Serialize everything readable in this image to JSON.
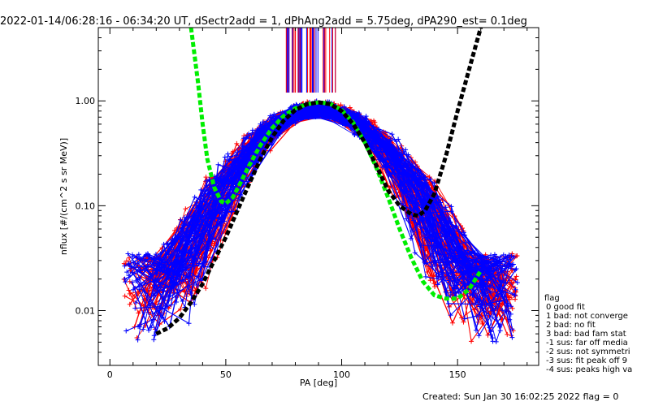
{
  "chart_data": {
    "type": "line",
    "title": "2022-01-14/06:28:16 - 06:34:20 UT, dSectr2add = 1, dPhAng2add = 5.75deg, dPA290_est=    0.1deg",
    "xlabel": "PA [deg]",
    "ylabel": "nflux [#/(cm^2 s sr MeV)]",
    "x_scale": "linear",
    "y_scale": "log",
    "xlim": [
      -5,
      185
    ],
    "ylim": [
      0.003,
      5.0
    ],
    "x_ticks": [
      0,
      50,
      100,
      150
    ],
    "x_tick_labels": [
      "0",
      "50",
      "100",
      "150"
    ],
    "y_ticks": [
      0.01,
      0.1,
      1.0
    ],
    "y_tick_labels": [
      "0.01",
      "0.10",
      "1.00"
    ],
    "grid": false,
    "legend_position": "right",
    "series": [
      {
        "color": "#00ee00",
        "style": "thick-dashed",
        "x": [
          35,
          38,
          40,
          42,
          45,
          48,
          50,
          53,
          56,
          60,
          65,
          70,
          75,
          80,
          85,
          90,
          95,
          100,
          105,
          110,
          115,
          120,
          125,
          130,
          135,
          140,
          145,
          150,
          155,
          160
        ],
        "y": [
          5.0,
          1.5,
          0.6,
          0.28,
          0.15,
          0.11,
          0.105,
          0.12,
          0.16,
          0.24,
          0.38,
          0.55,
          0.72,
          0.85,
          0.93,
          0.97,
          0.94,
          0.82,
          0.62,
          0.4,
          0.23,
          0.12,
          0.06,
          0.032,
          0.019,
          0.014,
          0.013,
          0.013,
          0.016,
          0.024
        ]
      },
      {
        "color": "#000000",
        "style": "thick-dashed",
        "x": [
          20,
          25,
          30,
          35,
          40,
          45,
          50,
          55,
          60,
          65,
          70,
          75,
          80,
          85,
          90,
          95,
          100,
          105,
          110,
          115,
          120,
          125,
          130,
          133,
          136,
          140,
          145,
          150,
          155,
          160
        ],
        "y": [
          0.006,
          0.0068,
          0.0085,
          0.012,
          0.018,
          0.03,
          0.05,
          0.09,
          0.16,
          0.28,
          0.45,
          0.65,
          0.82,
          0.93,
          0.97,
          0.93,
          0.8,
          0.6,
          0.4,
          0.24,
          0.14,
          0.1,
          0.083,
          0.08,
          0.09,
          0.13,
          0.3,
          0.8,
          2.0,
          5.0
        ]
      }
    ],
    "data_lines": {
      "red_count": 70,
      "blue_count": 70,
      "red_color": "#ff0000",
      "blue_color": "#0000ff"
    },
    "legend": {
      "title": "flag",
      "entries": [
        "0 good fit",
        "1 bad: not converge",
        "2 bad: no fit",
        "3 bad: bad fam stat",
        "-1 sus: far off media",
        "-2 sus: not symmetri",
        "-3 sus: fit peak off 9",
        "-4 sus: peaks high va"
      ]
    },
    "footer": "Created: Sun Jan 30 16:02:25 2022    flag = 0"
  }
}
